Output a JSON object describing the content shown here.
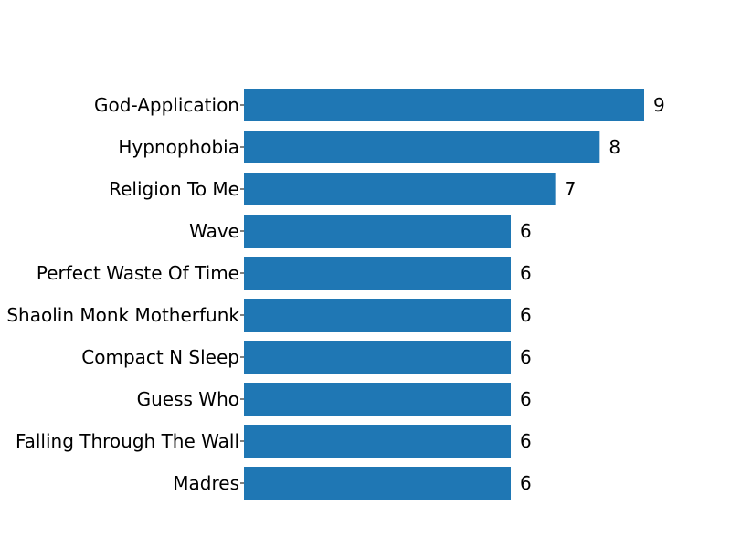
{
  "chart_data": {
    "type": "bar",
    "orientation": "horizontal",
    "categories": [
      "God-Application",
      "Hypnophobia",
      "Religion To Me",
      "Wave",
      "Perfect Waste Of Time",
      "Shaolin Monk Motherfunk",
      "Compact N Sleep",
      "Guess Who",
      "Falling Through The Wall",
      "Madres"
    ],
    "values": [
      9,
      8,
      7,
      6,
      6,
      6,
      6,
      6,
      6,
      6
    ],
    "title": "",
    "xlabel": "",
    "ylabel": "",
    "xlim": [
      0,
      9
    ],
    "grid": false,
    "bar_color": "#1f77b4",
    "show_value_labels": true
  }
}
